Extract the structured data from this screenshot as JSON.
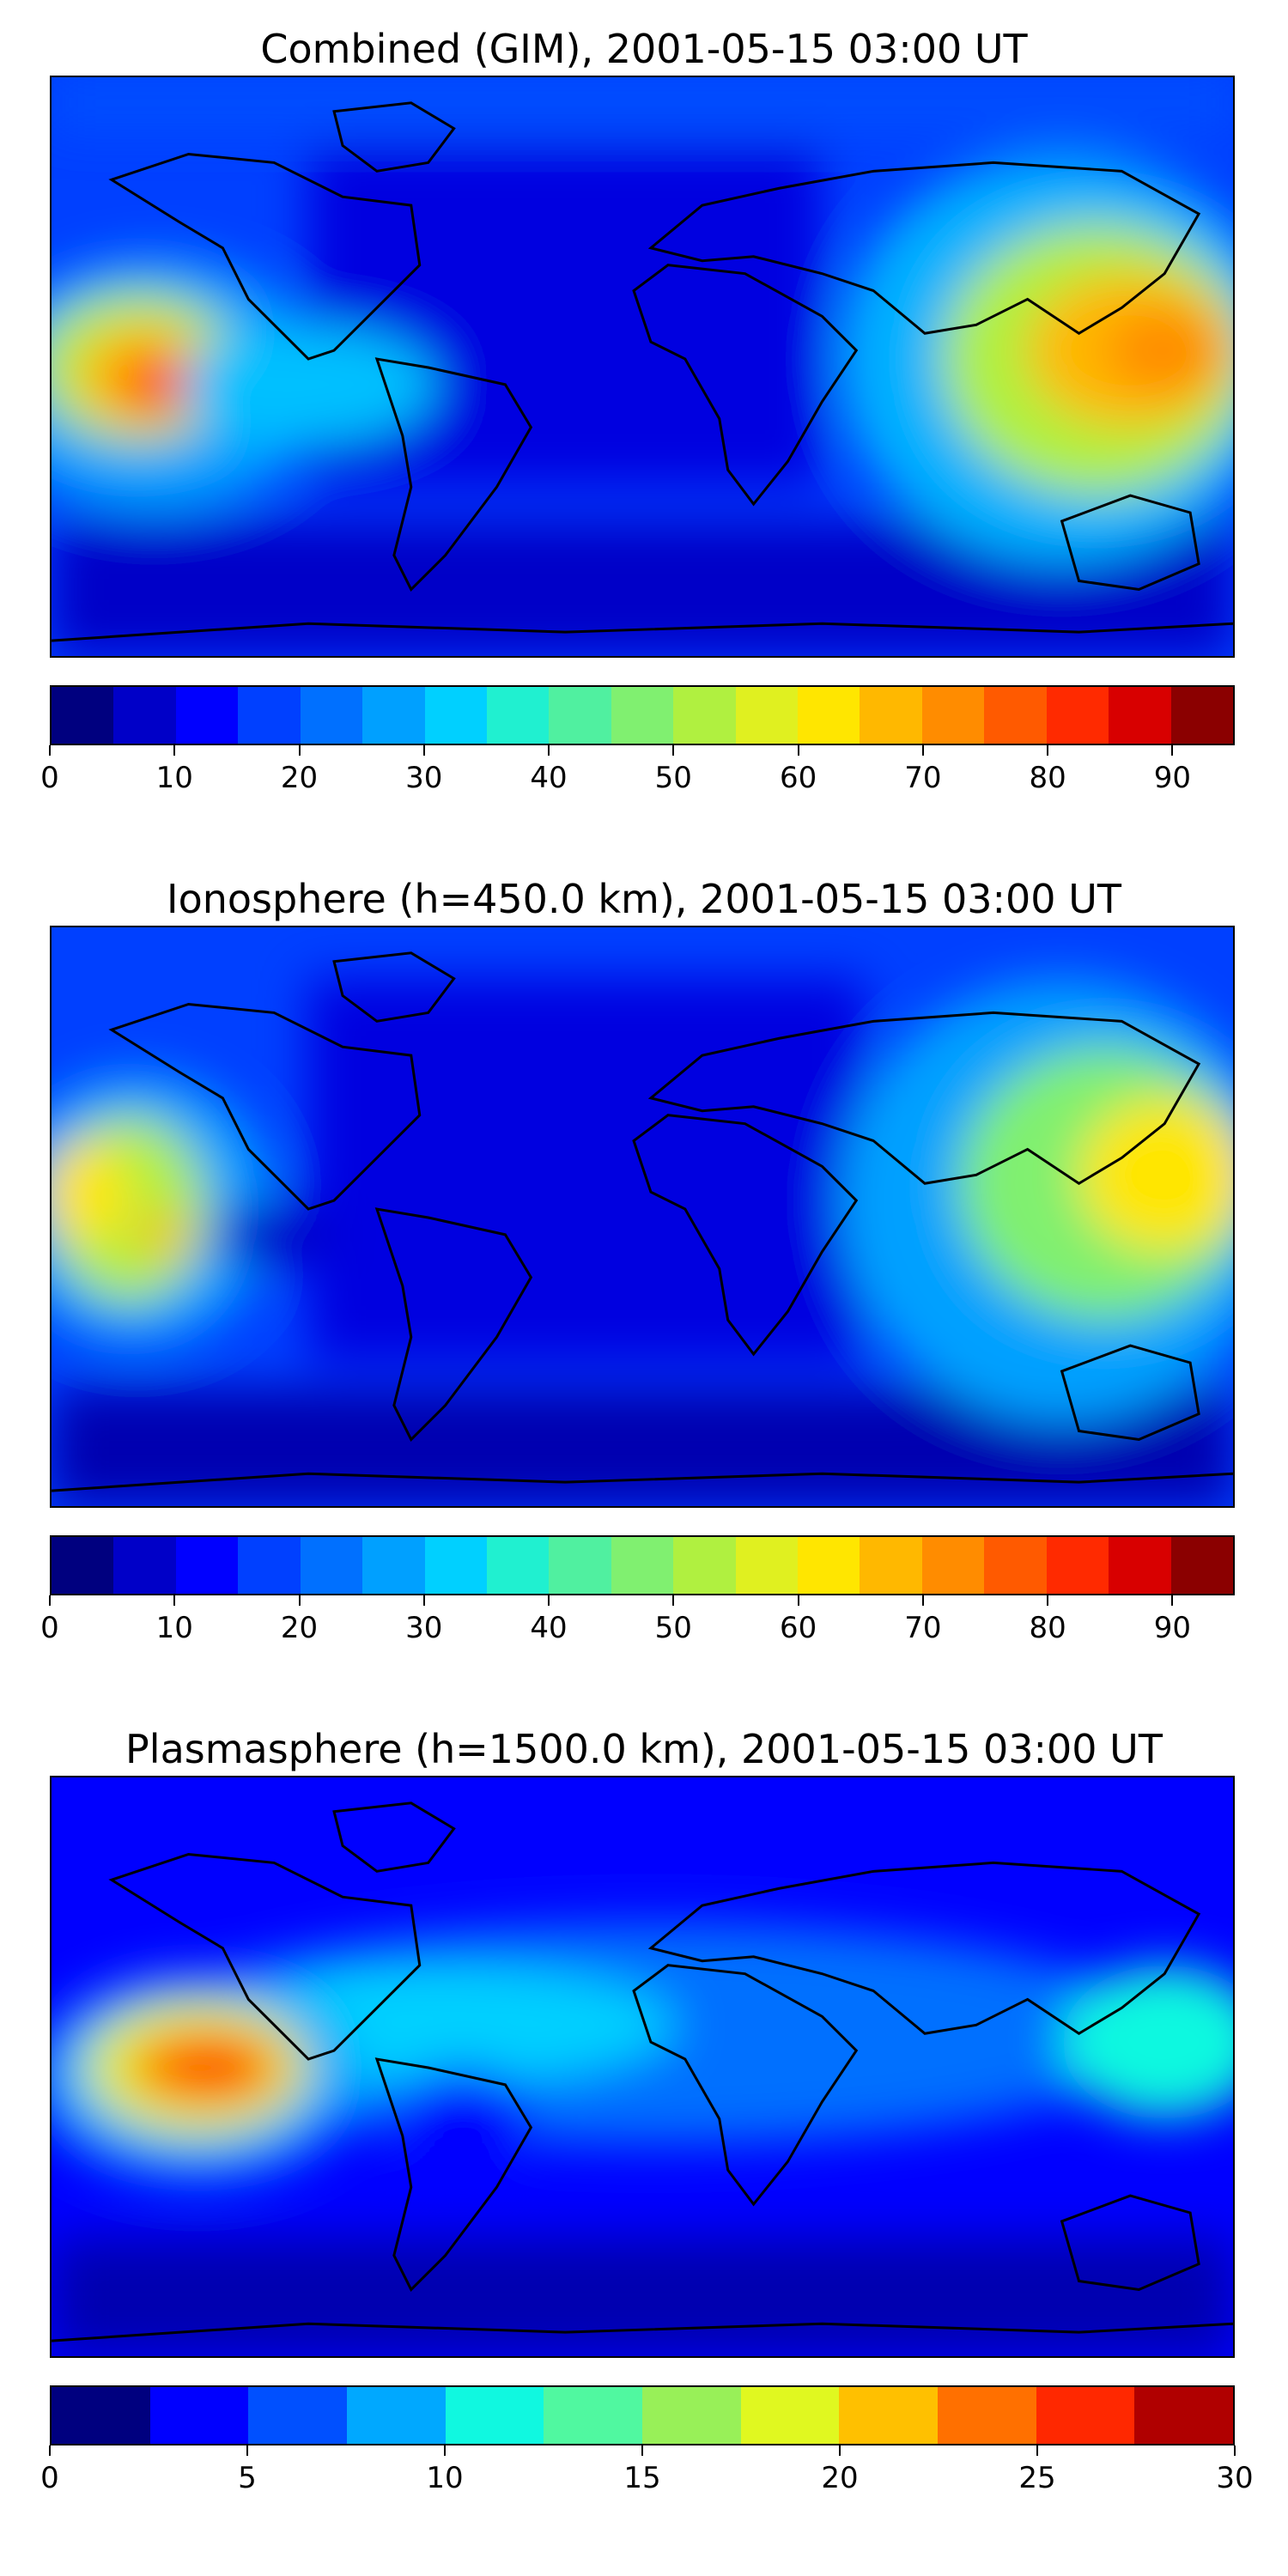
{
  "panels": [
    {
      "title": "Combined (GIM), 2001-05-15 03:00 UT",
      "colorbar": {
        "min": 0,
        "max": 95,
        "step": 5,
        "ticks": [
          "0",
          "10",
          "20",
          "30",
          "40",
          "50",
          "60",
          "70",
          "80",
          "90"
        ],
        "tick_values": [
          0,
          10,
          20,
          30,
          40,
          50,
          60,
          70,
          80,
          90
        ]
      }
    },
    {
      "title": "Ionosphere  (h=450.0 km), 2001-05-15 03:00 UT",
      "colorbar": {
        "min": 0,
        "max": 95,
        "step": 5,
        "ticks": [
          "0",
          "10",
          "20",
          "30",
          "40",
          "50",
          "60",
          "70",
          "80",
          "90"
        ],
        "tick_values": [
          0,
          10,
          20,
          30,
          40,
          50,
          60,
          70,
          80,
          90
        ]
      }
    },
    {
      "title": "Plasmasphere (h=1500.0 km), 2001-05-15 03:00 UT",
      "colorbar": {
        "min": 0,
        "max": 30,
        "step": 2.5,
        "ticks": [
          "0",
          "5",
          "10",
          "15",
          "20",
          "25",
          "30"
        ],
        "tick_values": [
          0,
          5,
          10,
          15,
          20,
          25,
          30
        ]
      }
    }
  ],
  "colors": {
    "jet19": [
      "#00007f",
      "#0000c8",
      "#0000ff",
      "#0040ff",
      "#0070ff",
      "#00a0ff",
      "#00d0ff",
      "#20f0d0",
      "#50f0a0",
      "#80f070",
      "#b0f040",
      "#e0f020",
      "#ffe600",
      "#ffb800",
      "#ff8c00",
      "#ff5a00",
      "#ff2a00",
      "#d80000",
      "#8b0000"
    ],
    "jet12": [
      "#00007f",
      "#0000ff",
      "#0050ff",
      "#00a8ff",
      "#10f8e0",
      "#50f8a0",
      "#98f058",
      "#e0f820",
      "#ffc000",
      "#ff7000",
      "#ff2800",
      "#b00000"
    ]
  }
}
